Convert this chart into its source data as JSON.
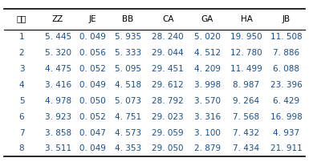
{
  "columns": [
    "配方",
    "ZZ",
    "JE",
    "BB",
    "CA",
    "GA",
    "HA",
    "JB"
  ],
  "rows": [
    [
      "1",
      "5. 445",
      "0. 049",
      "5. 935",
      "28. 240",
      "5. 020",
      "19. 950",
      "11. 508"
    ],
    [
      "2",
      "5. 320",
      "0. 056",
      "5. 333",
      "29. 044",
      "4. 512",
      "12. 780",
      "7. 886"
    ],
    [
      "3",
      "4. 475",
      "0. 052",
      "5. 095",
      "29. 451",
      "4. 209",
      "11. 499",
      "6. 088"
    ],
    [
      "4",
      "3. 416",
      "0. 049",
      "4. 518",
      "29. 612",
      "3. 998",
      "8. 987",
      "23. 396"
    ],
    [
      "5",
      "4. 978",
      "0. 050",
      "5. 073",
      "28. 792",
      "3. 570",
      "9. 264",
      "6. 429"
    ],
    [
      "6",
      "3. 923",
      "0. 052",
      "4. 751",
      "29. 023",
      "3. 316",
      "7. 568",
      "16. 998"
    ],
    [
      "7",
      "3. 858",
      "0. 047",
      "4. 573",
      "29. 059",
      "3. 100",
      "7. 432",
      "4. 937"
    ],
    [
      "8",
      "3. 511",
      "0. 049",
      "4. 353",
      "29. 050",
      "2. 879",
      "7. 434",
      "21. 911"
    ]
  ],
  "text_color": "#1a4f8a",
  "header_text_color": "#000000",
  "bg_color": "#ffffff",
  "line_color": "#000000",
  "fontsize": 7.5,
  "fig_width": 3.85,
  "fig_height": 2.02,
  "dpi": 100
}
